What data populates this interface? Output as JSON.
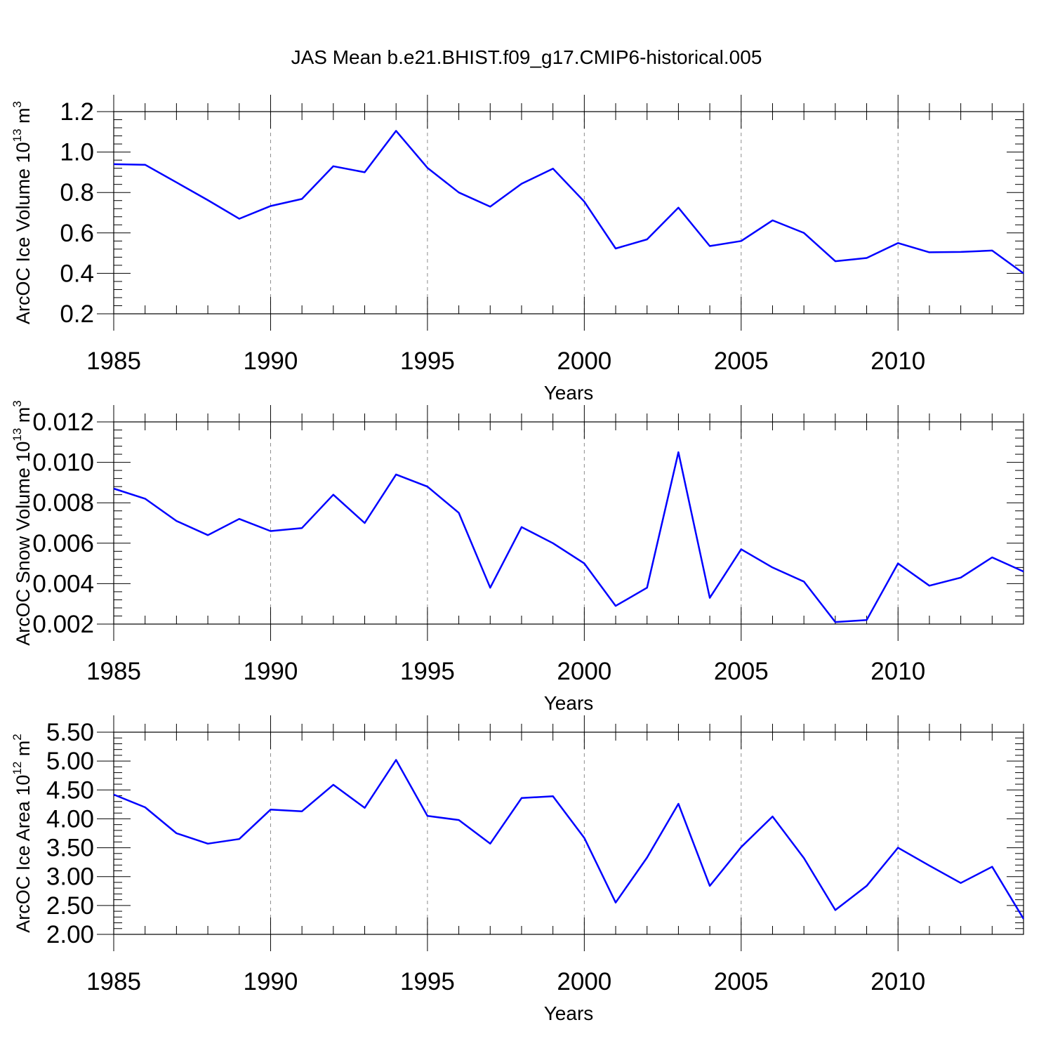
{
  "title": "JAS Mean b.e21.BHIST.f09_g17.CMIP6-historical.005",
  "line_color": "#0000ff",
  "chart_data": [
    {
      "type": "line",
      "ylabel": "ArcOC Ice Volume 10",
      "ylabel_exp": "13",
      "ylabel_unit": " m",
      "ylabel_unit_exp": "3",
      "xlabel": "Years",
      "x_ticks": [
        "1985",
        "1990",
        "1995",
        "2000",
        "2005",
        "2010"
      ],
      "y_ticks": [
        "0.2",
        "0.4",
        "0.6",
        "0.8",
        "1.0",
        "1.2"
      ],
      "xlim": [
        1985,
        2014
      ],
      "ylim": [
        0.2,
        1.2
      ],
      "grid": "vertical dashed at major x ticks",
      "x": [
        1985,
        1986,
        1987,
        1988,
        1989,
        1990,
        1991,
        1992,
        1993,
        1994,
        1995,
        1996,
        1997,
        1998,
        1999,
        2000,
        2001,
        2002,
        2003,
        2004,
        2005,
        2006,
        2007,
        2008,
        2009,
        2010,
        2011,
        2012,
        2013,
        2014
      ],
      "values": [
        0.94,
        0.937,
        0.85,
        0.762,
        0.67,
        0.733,
        0.768,
        0.93,
        0.9,
        1.105,
        0.922,
        0.8,
        0.73,
        0.843,
        0.918,
        0.755,
        0.523,
        0.568,
        0.725,
        0.535,
        0.56,
        0.662,
        0.6,
        0.46,
        0.476,
        0.55,
        0.504,
        0.506,
        0.513,
        0.4
      ]
    },
    {
      "type": "line",
      "ylabel": "ArcOC Snow Volume 10",
      "ylabel_exp": "13",
      "ylabel_unit": " m",
      "ylabel_unit_exp": "3",
      "xlabel": "Years",
      "x_ticks": [
        "1985",
        "1990",
        "1995",
        "2000",
        "2005",
        "2010"
      ],
      "y_ticks": [
        "0.002",
        "0.004",
        "0.006",
        "0.008",
        "0.010",
        "0.012"
      ],
      "xlim": [
        1985,
        2014
      ],
      "ylim": [
        0.002,
        0.012
      ],
      "grid": "vertical dashed at major x ticks",
      "x": [
        1985,
        1986,
        1987,
        1988,
        1989,
        1990,
        1991,
        1992,
        1993,
        1994,
        1995,
        1996,
        1997,
        1998,
        1999,
        2000,
        2001,
        2002,
        2003,
        2004,
        2005,
        2006,
        2007,
        2008,
        2009,
        2010,
        2011,
        2012,
        2013,
        2014
      ],
      "values": [
        0.0087,
        0.0082,
        0.0071,
        0.0064,
        0.0072,
        0.0066,
        0.00675,
        0.0084,
        0.007,
        0.0094,
        0.0088,
        0.0075,
        0.0038,
        0.0068,
        0.006,
        0.005,
        0.0029,
        0.0038,
        0.0105,
        0.0033,
        0.0057,
        0.0048,
        0.0041,
        0.0021,
        0.0022,
        0.005,
        0.0039,
        0.0043,
        0.0053,
        0.0046
      ]
    },
    {
      "type": "line",
      "ylabel": "ArcOC Ice Area 10",
      "ylabel_exp": "12",
      "ylabel_unit": " m",
      "ylabel_unit_exp": "2",
      "xlabel": "Years",
      "x_ticks": [
        "1985",
        "1990",
        "1995",
        "2000",
        "2005",
        "2010"
      ],
      "y_ticks": [
        "2.00",
        "2.50",
        "3.00",
        "3.50",
        "4.00",
        "4.50",
        "5.00",
        "5.50"
      ],
      "xlim": [
        1985,
        2014
      ],
      "ylim": [
        2.0,
        5.5
      ],
      "grid": "vertical dashed at major x ticks",
      "x": [
        1985,
        1986,
        1987,
        1988,
        1989,
        1990,
        1991,
        1992,
        1993,
        1994,
        1995,
        1996,
        1997,
        1998,
        1999,
        2000,
        2001,
        2002,
        2003,
        2004,
        2005,
        2006,
        2007,
        2008,
        2009,
        2010,
        2011,
        2012,
        2013,
        2014
      ],
      "values": [
        4.42,
        4.2,
        3.75,
        3.57,
        3.65,
        4.16,
        4.13,
        4.59,
        4.19,
        5.02,
        4.05,
        3.98,
        3.57,
        4.36,
        4.39,
        3.67,
        2.55,
        3.33,
        4.26,
        2.84,
        3.51,
        4.04,
        3.32,
        2.42,
        2.84,
        3.5,
        3.19,
        2.89,
        3.17,
        2.27
      ]
    }
  ]
}
